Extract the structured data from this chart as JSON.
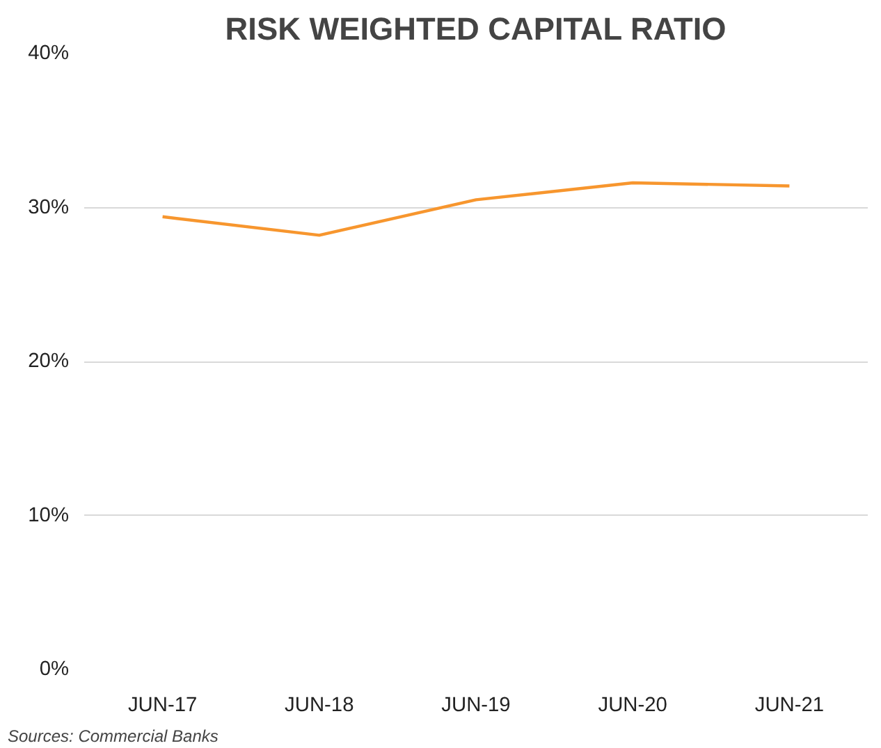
{
  "chart_data": {
    "type": "line",
    "title": "RISK WEIGHTED CAPITAL RATIO",
    "categories": [
      "JUN-17",
      "JUN-18",
      "JUN-19",
      "JUN-20",
      "JUN-21"
    ],
    "series": [
      {
        "color": "#f7962e",
        "values": [
          29.4,
          28.2,
          30.5,
          31.6,
          31.4
        ]
      }
    ],
    "ylim": [
      0,
      40
    ],
    "yticks": [
      {
        "value": 0,
        "label": "0%"
      },
      {
        "value": 10,
        "label": "10%"
      },
      {
        "value": 20,
        "label": "20%"
      },
      {
        "value": 30,
        "label": "30%"
      },
      {
        "value": 40,
        "label": "40%"
      }
    ],
    "grid": "y",
    "marker": "none",
    "line_style": "solid",
    "annotations": [
      "Sources: Commercial Banks"
    ]
  }
}
